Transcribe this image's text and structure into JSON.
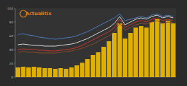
{
  "chart_data": {
    "type": "bar",
    "annotations": [
      "Actualitix"
    ],
    "categories": [
      null,
      null,
      null,
      null,
      null,
      null,
      null,
      null,
      null,
      null,
      null,
      null,
      null,
      null,
      null,
      null,
      null,
      null,
      null,
      null,
      null,
      null,
      null,
      null,
      null,
      null,
      null,
      null,
      null,
      null
    ],
    "series": [
      {
        "type": "bar",
        "color": "#e0b000",
        "values": [
          14,
          15,
          14,
          15,
          14,
          13,
          13,
          12,
          13,
          12,
          14,
          17,
          21,
          26,
          32,
          36,
          44,
          52,
          64,
          78,
          56,
          64,
          72,
          74,
          72,
          80,
          84,
          78,
          82,
          78
        ]
      },
      {
        "type": "line",
        "color": "#4a7ac0",
        "values": [
          62,
          63,
          61,
          60,
          58,
          57,
          56,
          55,
          56,
          57,
          58,
          60,
          63,
          66,
          70,
          74,
          78,
          82,
          86,
          92,
          82,
          84,
          86,
          88,
          86,
          90,
          92,
          88,
          90,
          88
        ]
      },
      {
        "type": "line",
        "color": "#d8d8d8",
        "values": [
          47,
          48,
          47,
          46,
          46,
          45,
          45,
          45,
          46,
          47,
          48,
          50,
          53,
          56,
          60,
          64,
          68,
          72,
          78,
          88,
          76,
          80,
          84,
          86,
          84,
          88,
          90,
          86,
          88,
          86
        ]
      },
      {
        "type": "line",
        "color": "#c0392b",
        "values": [
          40,
          41,
          40,
          40,
          39,
          39,
          38,
          38,
          39,
          40,
          41,
          43,
          46,
          50,
          54,
          58,
          62,
          66,
          72,
          84,
          72,
          76,
          80,
          82,
          80,
          84,
          86,
          82,
          84,
          82
        ]
      },
      {
        "type": "line",
        "color": "#8a4a2a",
        "values": [
          36,
          37,
          36,
          36,
          35,
          35,
          35,
          35,
          36,
          37,
          38,
          40,
          42,
          45,
          48,
          52,
          56,
          60,
          66,
          78,
          68,
          72,
          76,
          78,
          77,
          80,
          82,
          78,
          80,
          79
        ]
      }
    ],
    "ylim": [
      0,
      100
    ],
    "yticks": [
      0,
      20,
      40,
      60,
      80,
      100
    ],
    "grid": false
  }
}
